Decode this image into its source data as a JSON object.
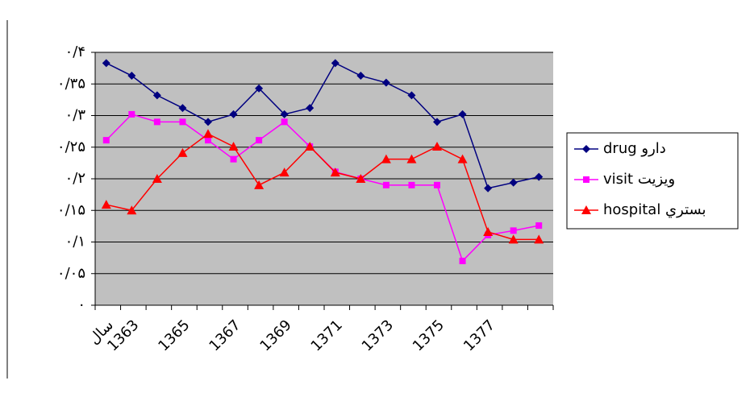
{
  "chart_data": {
    "type": "line",
    "categories": [
      "سال",
      "1363",
      null,
      "1365",
      null,
      "1367",
      null,
      "1369",
      null,
      "1371",
      null,
      "1373",
      null,
      "1375",
      null,
      "1377",
      null,
      null
    ],
    "series": [
      {
        "name": "drug دارو",
        "color": "#000080",
        "marker": "diamond",
        "values": [
          0.383,
          0.363,
          0.332,
          0.312,
          0.29,
          0.302,
          0.343,
          0.302,
          0.312,
          0.383,
          0.363,
          0.352,
          0.332,
          0.29,
          0.302,
          0.185,
          0.194,
          0.203
        ]
      },
      {
        "name": "visit ویزیت",
        "color": "#ff00ff",
        "marker": "square",
        "values": [
          0.261,
          0.302,
          0.29,
          0.29,
          0.261,
          0.231,
          0.261,
          0.29,
          0.251,
          0.211,
          0.2,
          0.19,
          0.19,
          0.19,
          0.07,
          0.111,
          0.118,
          0.126
        ]
      },
      {
        "name": "hospital بستري",
        "color": "#ff0000",
        "marker": "triangle",
        "values": [
          0.159,
          0.15,
          0.2,
          0.241,
          0.271,
          0.251,
          0.19,
          0.21,
          0.251,
          0.21,
          0.2,
          0.231,
          0.231,
          0.251,
          0.231,
          0.116,
          0.104,
          0.104
        ]
      }
    ],
    "ylim": [
      0,
      0.4
    ],
    "yticks": [
      {
        "value": 0,
        "label": "۰"
      },
      {
        "value": 0.05,
        "label": "۰/۰۵"
      },
      {
        "value": 0.1,
        "label": "۰/۱"
      },
      {
        "value": 0.15,
        "label": "۰/۱۵"
      },
      {
        "value": 0.2,
        "label": "۰/۲"
      },
      {
        "value": 0.25,
        "label": "۰/۲۵"
      },
      {
        "value": 0.3,
        "label": "۰/۳"
      },
      {
        "value": 0.35,
        "label": "۰/۳۵"
      },
      {
        "value": 0.4,
        "label": "۰/۴"
      }
    ],
    "grid": true,
    "plot_background": "#c0c0c0",
    "legend": "right"
  }
}
